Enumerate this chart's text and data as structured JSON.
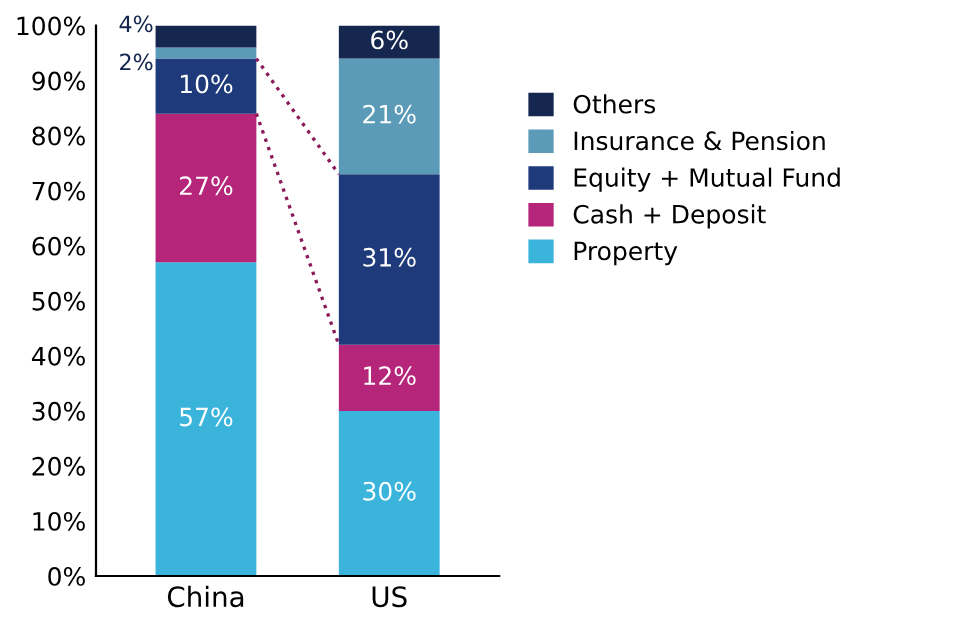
{
  "chart_data": {
    "type": "bar",
    "stacked": true,
    "categories": [
      "China",
      "US"
    ],
    "series": [
      {
        "name": "Property",
        "color": "#3bb4dc",
        "values": [
          57,
          30
        ],
        "value_labels": [
          "57%",
          "30%"
        ]
      },
      {
        "name": "Cash + Deposit",
        "color": "#b5267a",
        "values": [
          27,
          12
        ],
        "value_labels": [
          "27%",
          "12%"
        ]
      },
      {
        "name": "Equity + Mutual Fund",
        "color": "#1f3a7a",
        "values": [
          10,
          31
        ],
        "value_labels": [
          "10%",
          "31%"
        ]
      },
      {
        "name": "Insurance & Pension",
        "color": "#5b9bb7",
        "values": [
          2,
          21
        ],
        "value_labels": [
          "2%",
          "21%"
        ]
      },
      {
        "name": "Others",
        "color": "#15264f",
        "values": [
          4,
          6
        ],
        "value_labels": [
          "4%",
          "6%"
        ]
      }
    ],
    "ylim": [
      0,
      100
    ],
    "yticks": [
      {
        "value": 0,
        "label": "0%"
      },
      {
        "value": 10,
        "label": "10%"
      },
      {
        "value": 20,
        "label": "20%"
      },
      {
        "value": 30,
        "label": "30%"
      },
      {
        "value": 40,
        "label": "40%"
      },
      {
        "value": 50,
        "label": "50%"
      },
      {
        "value": 60,
        "label": "60%"
      },
      {
        "value": 70,
        "label": "70%"
      },
      {
        "value": 80,
        "label": "80%"
      },
      {
        "value": 90,
        "label": "90%"
      },
      {
        "value": 100,
        "label": "100%"
      }
    ],
    "grid": false,
    "legend": "right"
  }
}
